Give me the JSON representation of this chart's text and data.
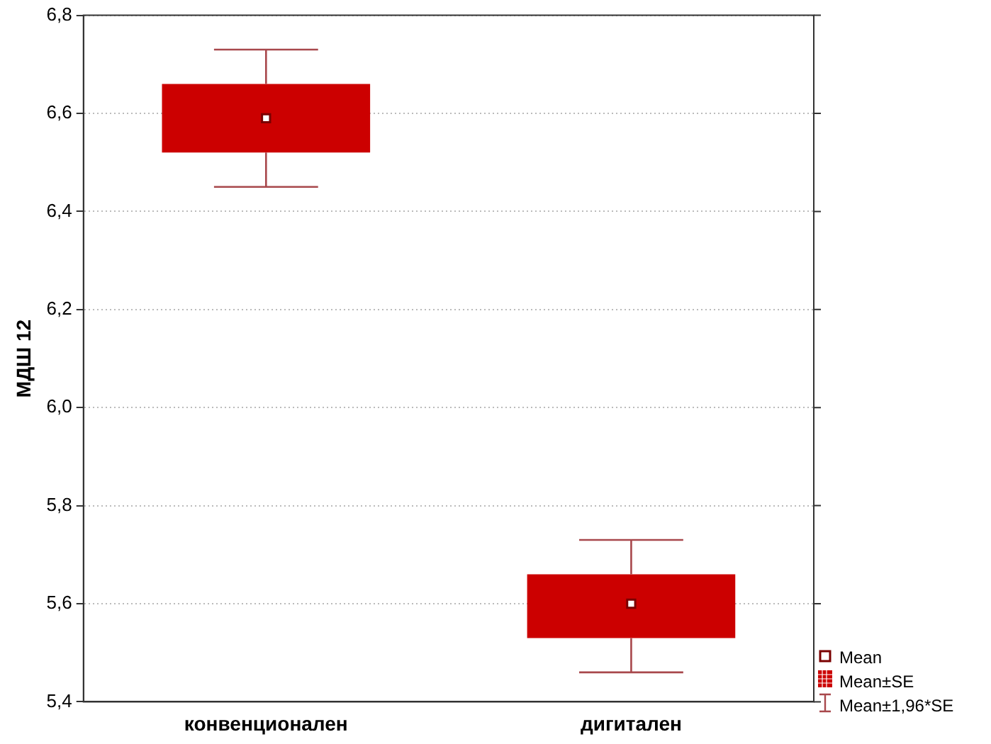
{
  "chart_data": {
    "type": "box",
    "ylabel": "МДШ 12",
    "categories": [
      "конвенционален",
      "дигитален"
    ],
    "color": "#cc0000",
    "boxes": [
      {
        "low": 6.45,
        "q1": 6.52,
        "q3": 6.66,
        "high": 6.73,
        "mean": 6.59
      },
      {
        "low": 5.46,
        "q1": 5.53,
        "q3": 5.66,
        "high": 5.73,
        "mean": 5.6
      }
    ],
    "ylim": [
      5.4,
      6.8
    ],
    "yticks": [
      {
        "value": 5.4,
        "label": "5,4"
      },
      {
        "value": 5.6,
        "label": "5,6"
      },
      {
        "value": 5.8,
        "label": "5,8"
      },
      {
        "value": 6.0,
        "label": "6,0"
      },
      {
        "value": 6.2,
        "label": "6,2"
      },
      {
        "value": 6.4,
        "label": "6,4"
      },
      {
        "value": 6.6,
        "label": "6,6"
      },
      {
        "value": 6.8,
        "label": "6,8"
      }
    ],
    "grid": "y",
    "annotations": [
      "Mean",
      "Mean±SE",
      "Mean±1,96*SE"
    ]
  }
}
